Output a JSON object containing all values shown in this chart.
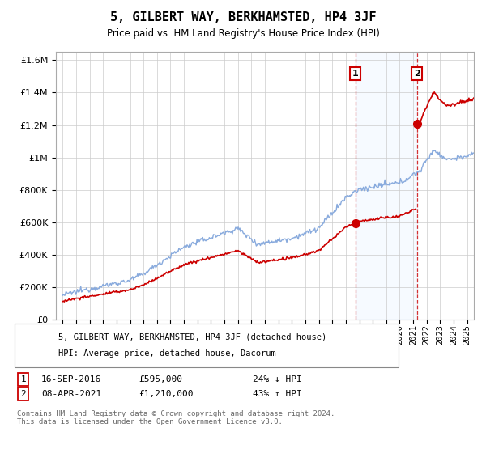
{
  "title": "5, GILBERT WAY, BERKHAMSTED, HP4 3JF",
  "subtitle": "Price paid vs. HM Land Registry's House Price Index (HPI)",
  "property_label": "5, GILBERT WAY, BERKHAMSTED, HP4 3JF (detached house)",
  "hpi_label": "HPI: Average price, detached house, Dacorum",
  "transaction1_date": "16-SEP-2016",
  "transaction1_price": "£595,000",
  "transaction1_hpi": "24% ↓ HPI",
  "transaction2_date": "08-APR-2021",
  "transaction2_price": "£1,210,000",
  "transaction2_hpi": "43% ↑ HPI",
  "footer": "Contains HM Land Registry data © Crown copyright and database right 2024.\nThis data is licensed under the Open Government Licence v3.0.",
  "property_color": "#cc0000",
  "hpi_color": "#88aadd",
  "shade_color": "#ddeeff",
  "background_color": "#ffffff",
  "grid_color": "#cccccc",
  "ylim": [
    0,
    1650000
  ],
  "yticks": [
    0,
    200000,
    400000,
    600000,
    800000,
    1000000,
    1200000,
    1400000,
    1600000
  ],
  "transaction1_x": 2016.71,
  "transaction1_y": 595000,
  "transaction2_x": 2021.27,
  "transaction2_y": 1210000,
  "vline1_x": 2016.71,
  "vline2_x": 2021.27,
  "xlim_left": 1994.5,
  "xlim_right": 2025.5
}
